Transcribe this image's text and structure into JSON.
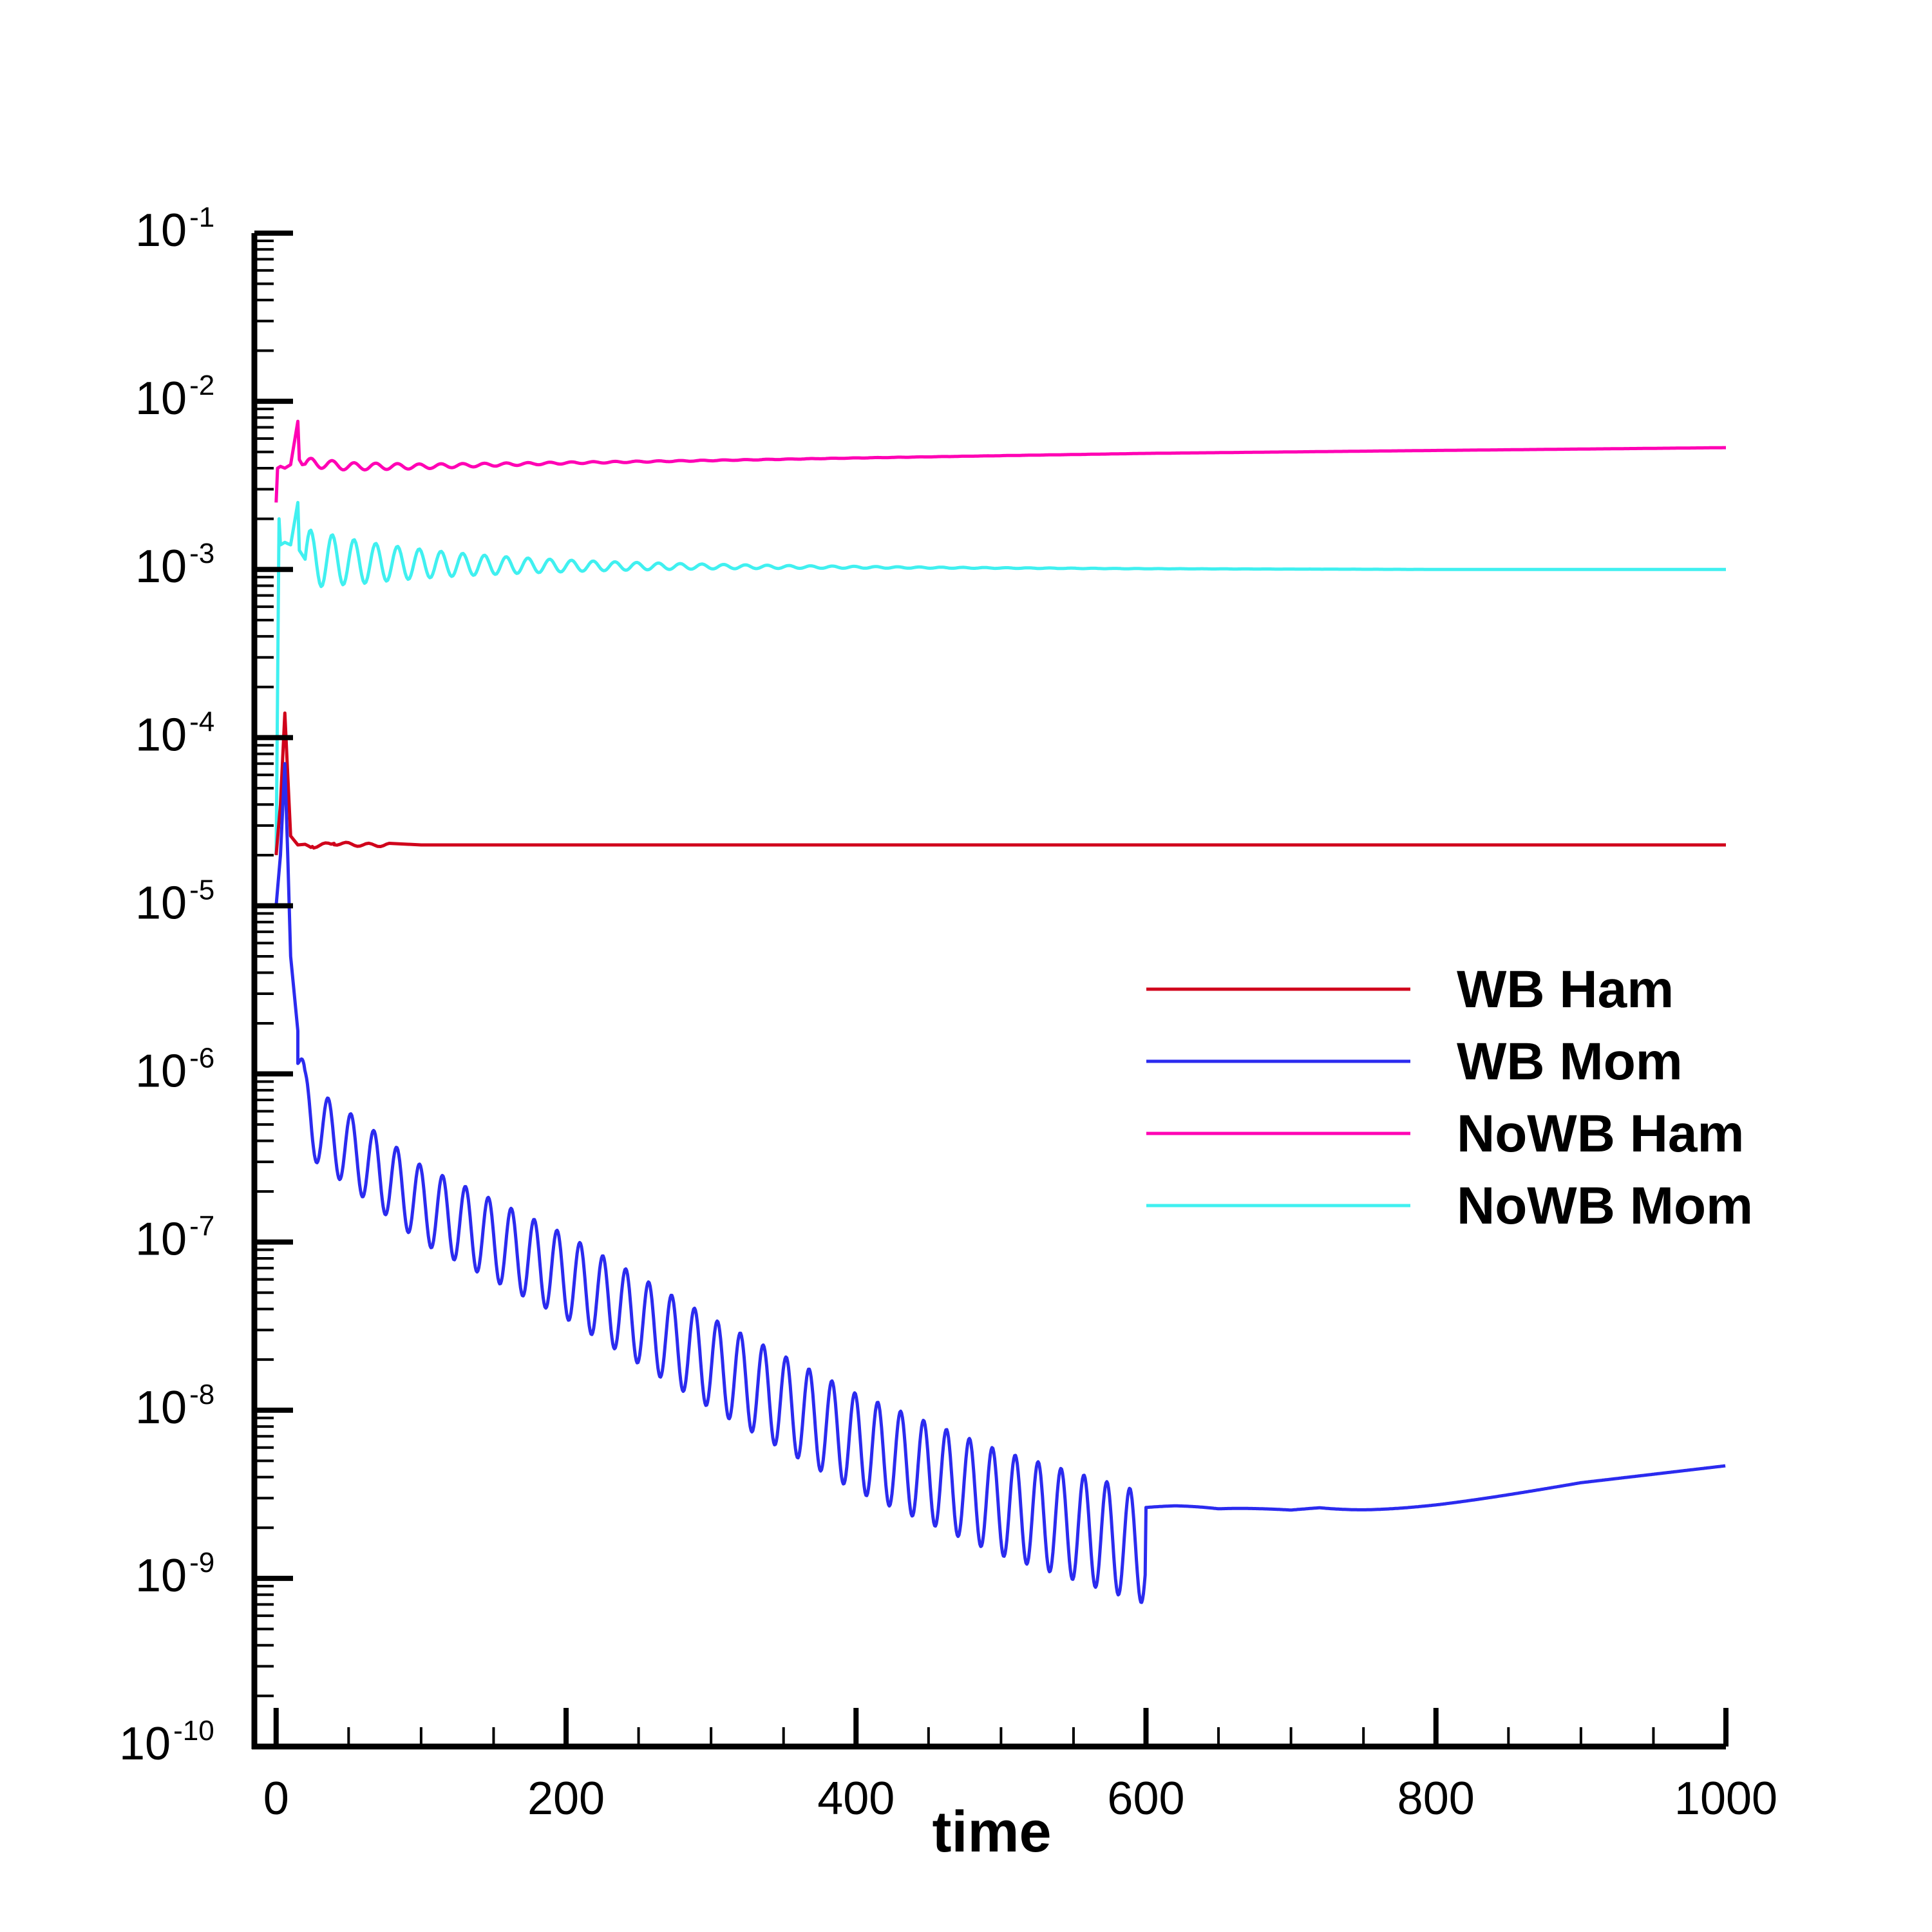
{
  "chart_data": {
    "type": "line",
    "title": "",
    "xlabel": "time",
    "ylabel": "",
    "xlim": [
      -15,
      1000
    ],
    "ylim_exp": [
      -10,
      -1
    ],
    "yscale": "log",
    "x_ticks": [
      0,
      200,
      400,
      600,
      800,
      1000
    ],
    "y_tick_labels": [
      {
        "base": "10",
        "exp": "-1"
      },
      {
        "base": "10",
        "exp": "-2"
      },
      {
        "base": "10",
        "exp": "-3"
      },
      {
        "base": "10",
        "exp": "-4"
      },
      {
        "base": "10",
        "exp": "-5"
      },
      {
        "base": "10",
        "exp": "-6"
      },
      {
        "base": "10",
        "exp": "-7"
      },
      {
        "base": "10",
        "exp": "-8"
      },
      {
        "base": "10",
        "exp": "-9"
      },
      {
        "base": "10",
        "exp": "-10"
      }
    ],
    "legend_position": "right",
    "series": [
      {
        "name": "WB Ham",
        "color": "#d0021b",
        "x": [
          0,
          3,
          6,
          8,
          10,
          15,
          25,
          40,
          60,
          100,
          200,
          400,
          600,
          800,
          1000
        ],
        "y": [
          2e-05,
          4e-05,
          0.00014,
          6e-05,
          2.6e-05,
          2.3e-05,
          2.25e-05,
          2.35e-05,
          2.3e-05,
          2.3e-05,
          2.3e-05,
          2.3e-05,
          2.3e-05,
          2.3e-05,
          2.3e-05
        ]
      },
      {
        "name": "WB Mom",
        "color": "#2b2bef",
        "x": [
          0,
          3,
          6,
          8,
          10,
          15,
          20,
          25,
          50,
          100,
          200,
          300,
          400,
          500,
          600,
          650,
          700,
          750,
          800,
          900,
          1000
        ],
        "y": [
          1e-05,
          2e-05,
          7e-05,
          2e-05,
          5e-06,
          1.8e-06,
          8e-07,
          6.5e-07,
          4.6e-07,
          2.2e-07,
          8.3e-08,
          2.6e-08,
          9e-09,
          4e-09,
          2.2e-09,
          1.9e-09,
          1.9e-09,
          2.2e-09,
          2.6e-09,
          3.7e-09,
          4.7e-09
        ]
      },
      {
        "name": "NoWB Ham",
        "color": "#ff00b4",
        "x": [
          0,
          1,
          3,
          6,
          10,
          15,
          16,
          18,
          25,
          50,
          100,
          200,
          400,
          600,
          800,
          1000
        ],
        "y": [
          0.0025,
          0.004,
          0.0041,
          0.004,
          0.0042,
          0.0076,
          0.0045,
          0.0042,
          0.0043,
          0.0041,
          0.0041,
          0.0043,
          0.0046,
          0.0049,
          0.0051,
          0.0053
        ],
        "osc_amp": 0.03
      },
      {
        "name": "NoWB Mom",
        "color": "#40f0f0",
        "x": [
          0,
          2,
          3,
          6,
          10,
          15,
          16,
          20,
          30,
          60,
          100,
          150,
          200,
          300,
          400,
          600,
          800,
          1000
        ],
        "y": [
          2e-05,
          0.002,
          0.0014,
          0.00145,
          0.0014,
          0.0025,
          0.0013,
          0.00115,
          0.00115,
          0.0011,
          0.00108,
          0.00106,
          0.00105,
          0.00104,
          0.00103,
          0.00101,
          0.001,
          0.001
        ],
        "osc_amp": 0.18
      }
    ]
  }
}
